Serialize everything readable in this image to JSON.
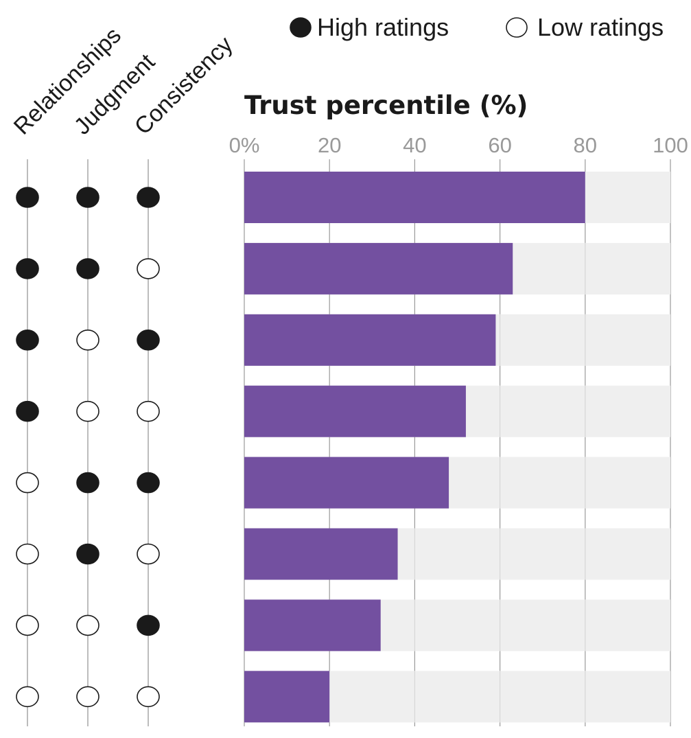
{
  "chart_data": {
    "type": "bar",
    "orientation": "horizontal",
    "title": "Trust percentile (%)",
    "xlim": [
      0,
      100
    ],
    "x_ticks": [
      "0%",
      "20",
      "40",
      "60",
      "80",
      "100"
    ],
    "x_tick_values": [
      0,
      20,
      40,
      60,
      80,
      100
    ],
    "grid": true,
    "legend": {
      "placement": "top-right",
      "items": [
        {
          "label": "High ratings",
          "marker": "filled"
        },
        {
          "label": "Low ratings",
          "marker": "open"
        }
      ]
    },
    "dimensions": [
      "Relationships",
      "Judgment",
      "Consistency"
    ],
    "rows": [
      {
        "ratings": [
          "high",
          "high",
          "high"
        ],
        "value": 80
      },
      {
        "ratings": [
          "high",
          "high",
          "low"
        ],
        "value": 63
      },
      {
        "ratings": [
          "high",
          "low",
          "high"
        ],
        "value": 59
      },
      {
        "ratings": [
          "high",
          "low",
          "low"
        ],
        "value": 52
      },
      {
        "ratings": [
          "low",
          "high",
          "high"
        ],
        "value": 48
      },
      {
        "ratings": [
          "low",
          "high",
          "low"
        ],
        "value": 36
      },
      {
        "ratings": [
          "low",
          "low",
          "high"
        ],
        "value": 32
      },
      {
        "ratings": [
          "low",
          "low",
          "low"
        ],
        "value": 20
      }
    ],
    "colors": {
      "bar": "#7350a0",
      "track": "#efefef",
      "gridline": "#9a9a9a",
      "tick_label": "#999999",
      "title": "#1a1a1a",
      "dot": "#1a1a1a"
    }
  }
}
